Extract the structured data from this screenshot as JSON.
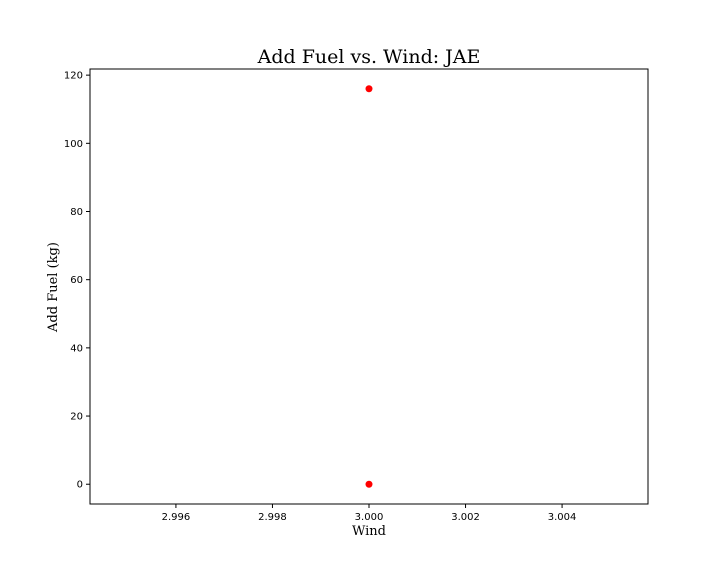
{
  "chart_data": {
    "type": "scatter",
    "title": "Add Fuel vs. Wind: JAE",
    "xlabel": "Wind",
    "ylabel": "Add Fuel (kg)",
    "xlim": [
      2.99422,
      3.00578
    ],
    "ylim": [
      -5.8,
      121.8
    ],
    "x_ticks": [
      2.996,
      2.998,
      3.0,
      3.002,
      3.004
    ],
    "x_tick_labels": [
      "2.996",
      "2.998",
      "3.000",
      "3.002",
      "3.004"
    ],
    "y_ticks": [
      0,
      20,
      40,
      60,
      80,
      100,
      120
    ],
    "y_tick_labels": [
      "0",
      "20",
      "40",
      "60",
      "80",
      "100",
      "120"
    ],
    "grid": false,
    "legend": "none",
    "marker_color": "#ff0000",
    "points": [
      {
        "x": 3.0,
        "y": 116
      },
      {
        "x": 3.0,
        "y": 0
      }
    ]
  }
}
